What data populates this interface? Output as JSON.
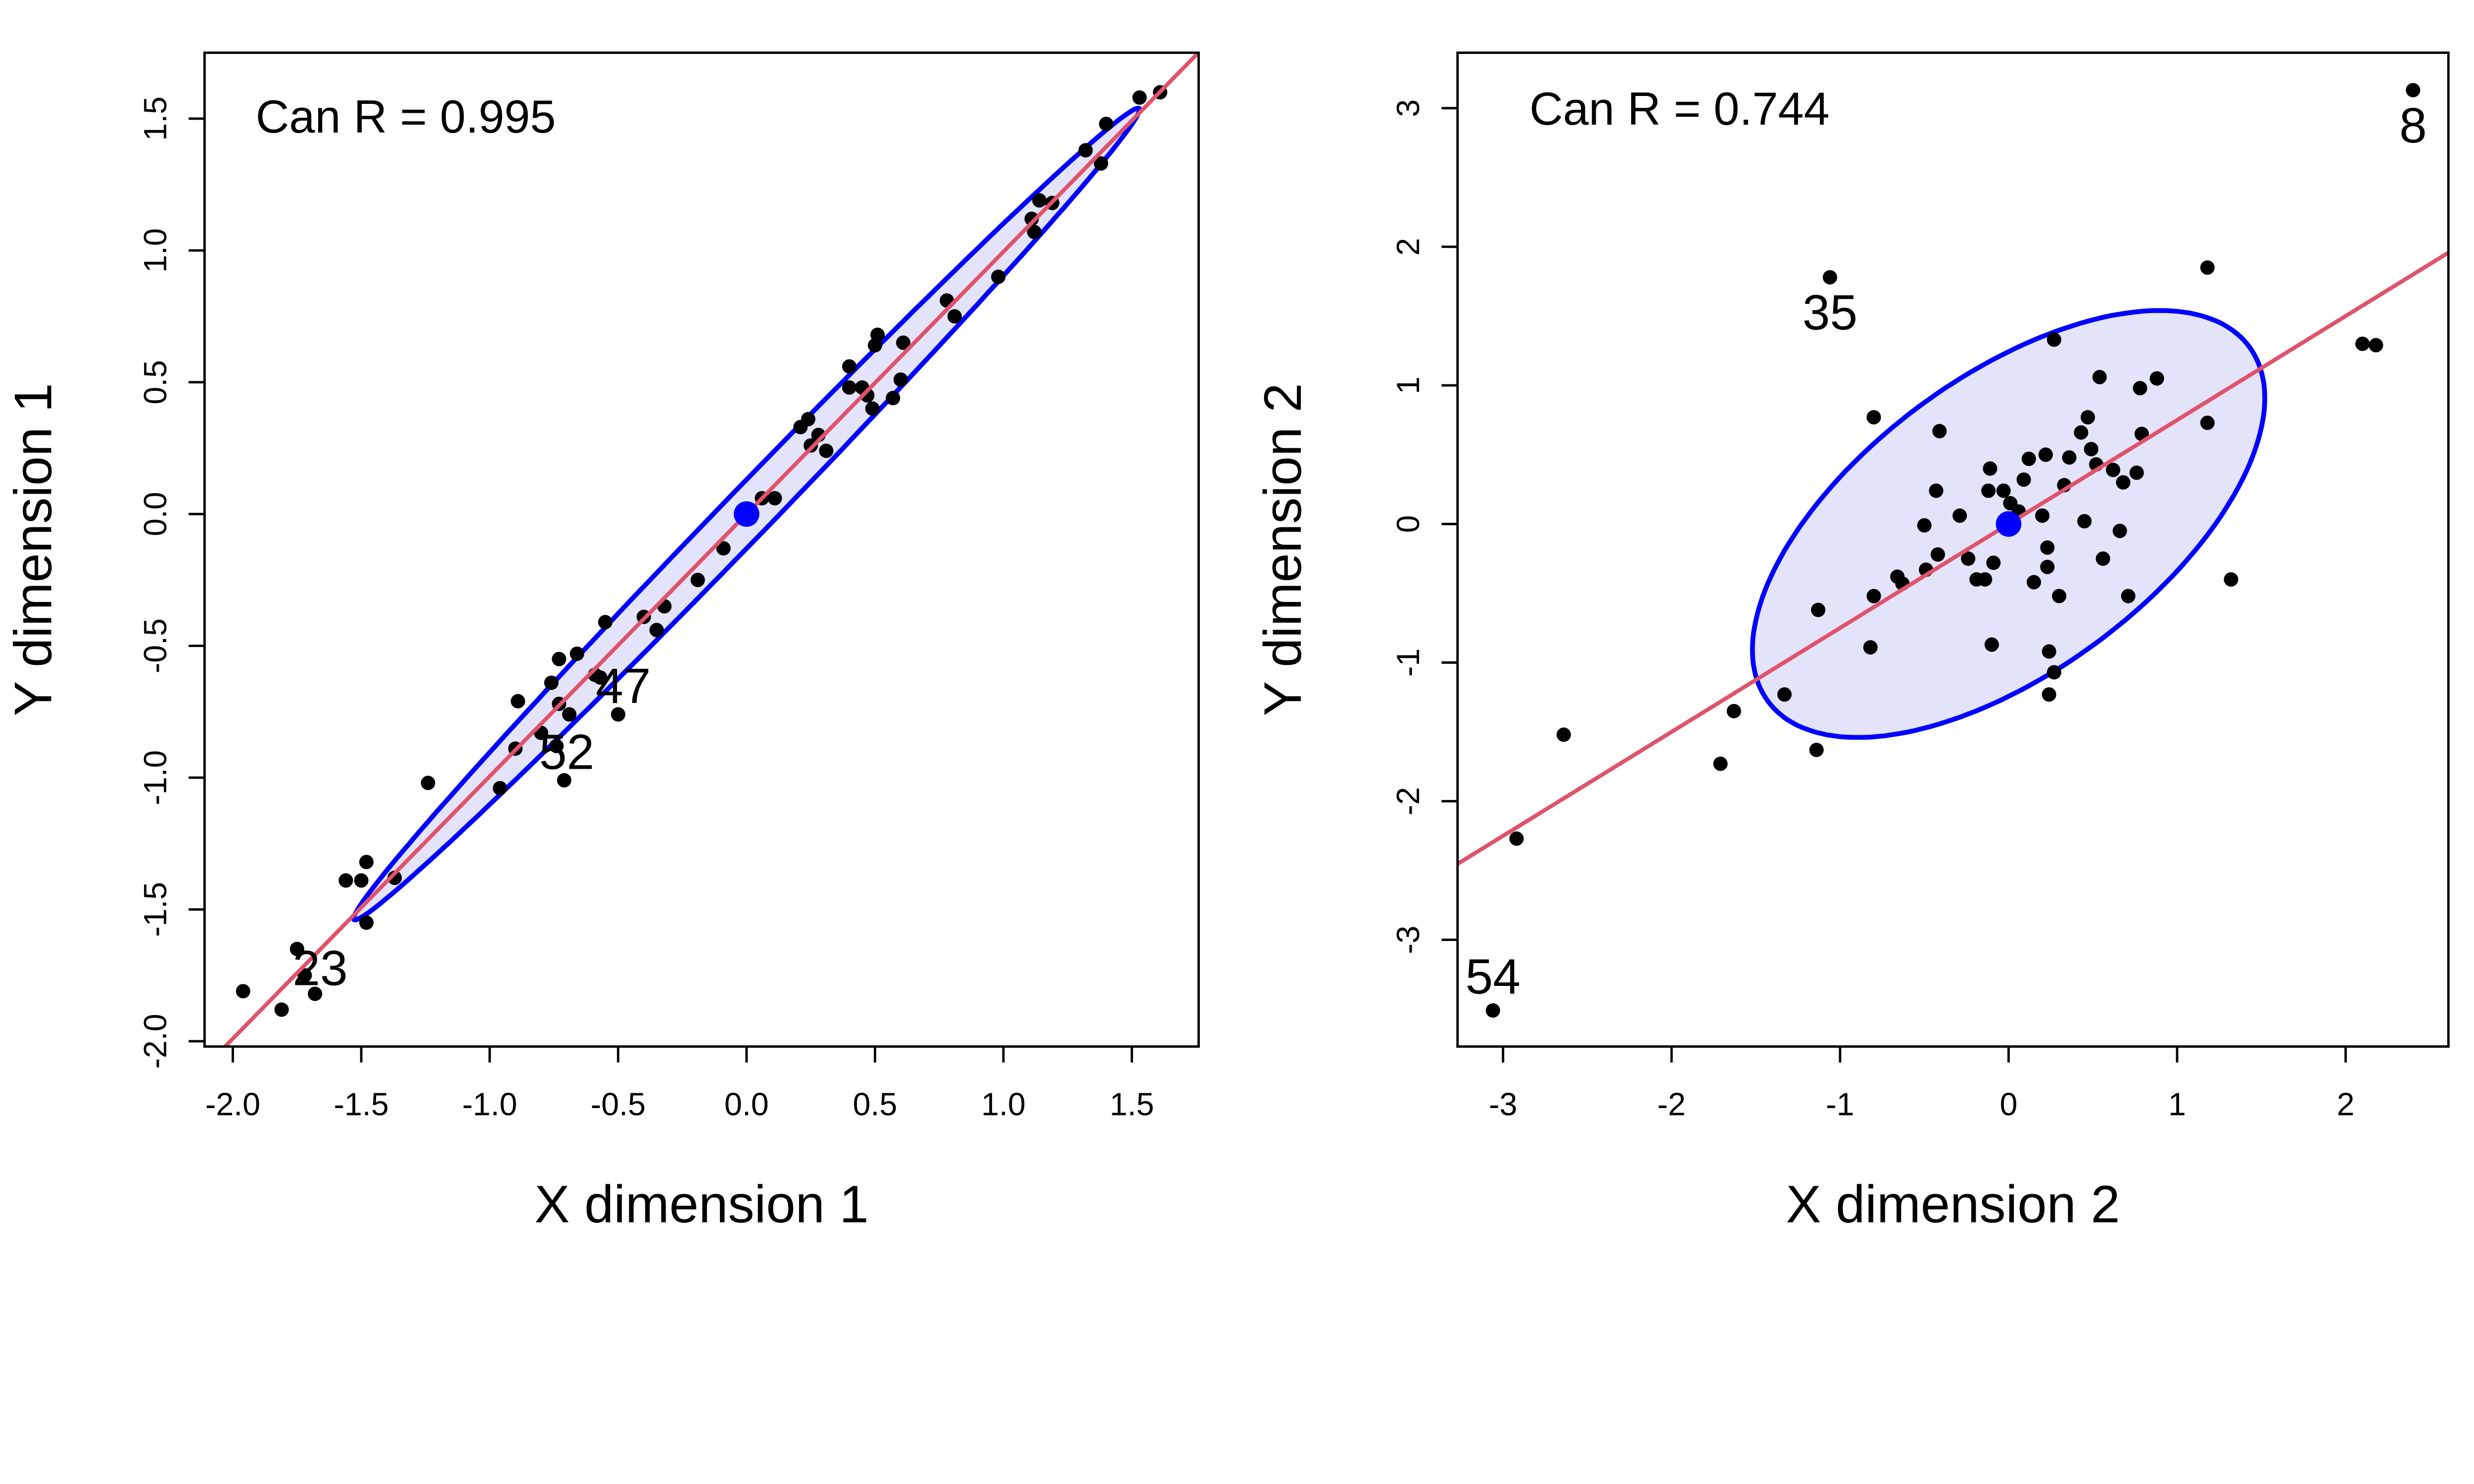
{
  "chart_data": [
    {
      "type": "scatter",
      "title": "",
      "xlabel": "X dimension 1",
      "ylabel": "Y dimension 1",
      "xlim": [
        -2.11,
        1.76
      ],
      "ylim": [
        -2.02,
        1.75
      ],
      "xticks": [
        -2.0,
        -1.5,
        -1.0,
        -0.5,
        0.0,
        0.5,
        1.0,
        1.5
      ],
      "xtick_labels": [
        "-2.0",
        "-1.5",
        "-1.0",
        "-0.5",
        "0.0",
        "0.5",
        "1.0",
        "1.5"
      ],
      "yticks": [
        -2.0,
        -1.5,
        -1.0,
        -0.5,
        0.0,
        0.5,
        1.0,
        1.5
      ],
      "ytick_labels": [
        "-2.0",
        "-1.5",
        "-1.0",
        "-0.5",
        "0.0",
        "0.5",
        "1.0",
        "1.5"
      ],
      "annotation": "Can R = 0.995",
      "centroid": [
        0,
        0
      ],
      "ellipse": {
        "A": 1.53,
        "B": 1.54,
        "phi": 0.085
      },
      "fit_line": {
        "slope": 0.995,
        "intercept": 0
      },
      "labels": [
        {
          "text": "23",
          "x": -1.66,
          "y": -1.72
        },
        {
          "text": "47",
          "x": -0.48,
          "y": -0.65
        },
        {
          "text": "52",
          "x": -0.7,
          "y": -0.9
        }
      ],
      "points": [
        [
          -1.96,
          -1.81
        ],
        [
          -1.81,
          -1.88
        ],
        [
          -1.75,
          -1.65
        ],
        [
          -1.72,
          -1.75
        ],
        [
          -1.68,
          -1.82
        ],
        [
          -1.56,
          -1.39
        ],
        [
          -1.5,
          -1.39
        ],
        [
          -1.48,
          -1.32
        ],
        [
          -1.48,
          -1.55
        ],
        [
          -1.37,
          -1.38
        ],
        [
          -1.24,
          -1.02
        ],
        [
          -0.96,
          -1.04
        ],
        [
          -0.9,
          -0.89
        ],
        [
          -0.89,
          -0.71
        ],
        [
          -0.8,
          -0.83
        ],
        [
          -0.76,
          -0.64
        ],
        [
          -0.73,
          -0.55
        ],
        [
          -0.73,
          -0.72
        ],
        [
          -0.71,
          -1.01
        ],
        [
          -0.69,
          -0.76
        ],
        [
          -0.66,
          -0.53
        ],
        [
          -0.59,
          -0.61
        ],
        [
          -0.55,
          -0.41
        ],
        [
          -0.5,
          -0.76
        ],
        [
          -0.4,
          -0.39
        ],
        [
          -0.35,
          -0.44
        ],
        [
          -0.32,
          -0.35
        ],
        [
          -0.19,
          -0.25
        ],
        [
          -0.09,
          -0.13
        ],
        [
          0.06,
          0.06
        ],
        [
          0.11,
          0.06
        ],
        [
          0.21,
          0.33
        ],
        [
          0.24,
          0.36
        ],
        [
          0.25,
          0.26
        ],
        [
          0.28,
          0.3
        ],
        [
          0.31,
          0.24
        ],
        [
          0.4,
          0.56
        ],
        [
          0.4,
          0.48
        ],
        [
          0.45,
          0.48
        ],
        [
          0.47,
          0.45
        ],
        [
          0.49,
          0.4
        ],
        [
          0.5,
          0.64
        ],
        [
          0.51,
          0.68
        ],
        [
          0.57,
          0.44
        ],
        [
          0.6,
          0.51
        ],
        [
          0.61,
          0.65
        ],
        [
          0.78,
          0.81
        ],
        [
          0.81,
          0.75
        ],
        [
          0.98,
          0.9
        ],
        [
          1.11,
          1.12
        ],
        [
          1.14,
          1.19
        ],
        [
          1.12,
          1.07
        ],
        [
          1.19,
          1.18
        ],
        [
          1.32,
          1.38
        ],
        [
          1.38,
          1.33
        ],
        [
          1.4,
          1.48
        ],
        [
          1.53,
          1.58
        ],
        [
          1.61,
          1.6
        ],
        [
          -0.57,
          -0.62
        ],
        [
          -0.74,
          -0.88
        ]
      ]
    },
    {
      "type": "scatter",
      "title": "",
      "xlabel": "X dimension 2",
      "ylabel": "Y dimension 2",
      "xlim": [
        -3.27,
        2.61
      ],
      "ylim": [
        -3.77,
        3.4
      ],
      "xticks": [
        -3,
        -2,
        -1,
        0,
        1,
        2
      ],
      "xtick_labels": [
        "-3",
        "-2",
        "-1",
        "0",
        "1",
        "2"
      ],
      "yticks": [
        -3,
        -2,
        -1,
        0,
        1,
        2,
        3
      ],
      "ytick_labels": [
        "-3",
        "-2",
        "-1",
        "0",
        "1",
        "2",
        "3"
      ],
      "annotation": "Can R = 0.744",
      "centroid": [
        0,
        0
      ],
      "ellipse": {
        "A": 1.52,
        "B": 1.54,
        "phi": 0.94
      },
      "fit_line": {
        "slope": 0.75,
        "intercept": 0
      },
      "labels": [
        {
          "text": "8",
          "x": 2.4,
          "y": 2.88
        },
        {
          "text": "54",
          "x": -3.06,
          "y": -3.26
        },
        {
          "text": "35",
          "x": -1.06,
          "y": 1.53
        }
      ],
      "points": [
        [
          2.4,
          3.13
        ],
        [
          -3.06,
          -3.51
        ],
        [
          -2.92,
          -2.27
        ],
        [
          -2.64,
          -1.52
        ],
        [
          -1.71,
          -1.73
        ],
        [
          -1.63,
          -1.35
        ],
        [
          -1.33,
          -1.23
        ],
        [
          -1.14,
          -1.63
        ],
        [
          -1.13,
          -0.62
        ],
        [
          -1.06,
          1.78
        ],
        [
          -0.82,
          -0.89
        ],
        [
          -0.8,
          0.77
        ],
        [
          -0.8,
          -0.52
        ],
        [
          -0.66,
          -0.38
        ],
        [
          -0.63,
          -0.43
        ],
        [
          -0.49,
          -0.33
        ],
        [
          -0.5,
          -0.01
        ],
        [
          -0.43,
          0.24
        ],
        [
          -0.41,
          0.67
        ],
        [
          -0.42,
          -0.22
        ],
        [
          -0.29,
          0.06
        ],
        [
          -0.24,
          -0.25
        ],
        [
          -0.19,
          -0.4
        ],
        [
          -0.14,
          -0.4
        ],
        [
          -0.12,
          0.24
        ],
        [
          -0.11,
          0.4
        ],
        [
          -0.1,
          -0.87
        ],
        [
          -0.09,
          -0.28
        ],
        [
          -0.03,
          0.24
        ],
        [
          0.01,
          0.15
        ],
        [
          0.06,
          0.09
        ],
        [
          0.09,
          0.32
        ],
        [
          0.12,
          0.47
        ],
        [
          0.15,
          -0.42
        ],
        [
          0.2,
          0.06
        ],
        [
          0.22,
          0.5
        ],
        [
          0.23,
          -0.17
        ],
        [
          0.23,
          -0.31
        ],
        [
          0.24,
          -0.92
        ],
        [
          0.24,
          -1.23
        ],
        [
          0.27,
          -1.07
        ],
        [
          0.27,
          1.33
        ],
        [
          0.3,
          -0.52
        ],
        [
          0.33,
          0.28
        ],
        [
          0.36,
          0.48
        ],
        [
          0.43,
          0.66
        ],
        [
          0.45,
          0.02
        ],
        [
          0.47,
          0.77
        ],
        [
          0.49,
          0.54
        ],
        [
          0.52,
          0.43
        ],
        [
          0.54,
          1.06
        ],
        [
          0.56,
          -0.25
        ],
        [
          0.62,
          0.39
        ],
        [
          0.66,
          -0.05
        ],
        [
          0.68,
          0.3
        ],
        [
          0.71,
          -0.52
        ],
        [
          0.76,
          0.37
        ],
        [
          0.78,
          0.98
        ],
        [
          0.79,
          0.65
        ],
        [
          0.88,
          1.05
        ],
        [
          1.18,
          1.85
        ],
        [
          1.18,
          0.73
        ],
        [
          1.32,
          -0.4
        ],
        [
          2.1,
          1.3
        ],
        [
          2.18,
          1.29
        ]
      ]
    }
  ],
  "colors": {
    "points": "#000000",
    "ellipse_stroke": "#0000ff",
    "ellipse_fill": "#e3e3fa",
    "centroid": "#0000ff",
    "fit_line": "#df536b"
  }
}
